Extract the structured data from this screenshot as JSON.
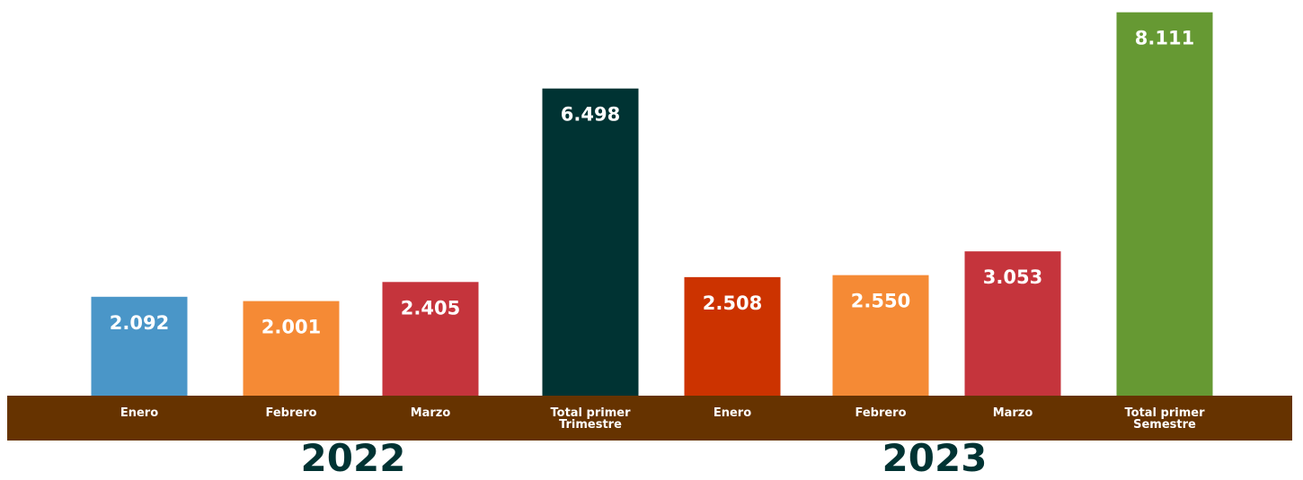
{
  "chart_data": {
    "type": "bar",
    "categories": [
      "Enero",
      "Febrero",
      "Marzo",
      "Total primer Trimestre",
      "Enero",
      "Febrero",
      "Marzo",
      "Total primer Semestre"
    ],
    "values": [
      2092,
      2001,
      2405,
      6498,
      2508,
      2550,
      3053,
      8111
    ],
    "value_labels": [
      "2.092",
      "2.001",
      "2.405",
      "6.498",
      "2.508",
      "2.550",
      "3.053",
      "8.111"
    ],
    "colors": [
      "#4a96c8",
      "#f58a35",
      "#c5343c",
      "#003333",
      "#cc3300",
      "#f58a35",
      "#c5343c",
      "#669933"
    ],
    "group_labels": [
      "2022",
      "2023"
    ],
    "ylim": [
      0,
      8200
    ]
  }
}
